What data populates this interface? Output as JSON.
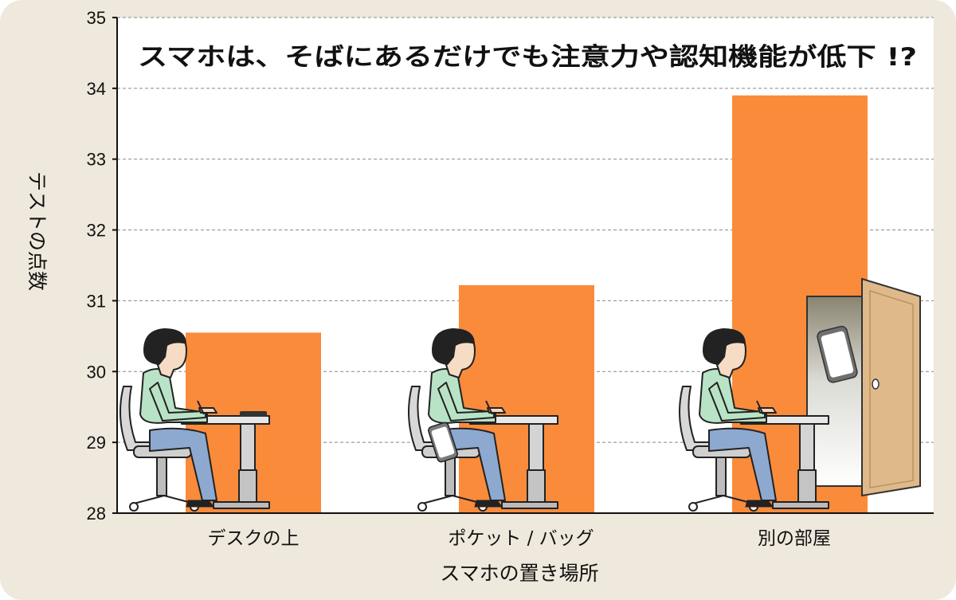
{
  "chart_data": {
    "type": "bar",
    "title": "スマホは、そばにあるだけでも注意力や認知機能が低下 !?",
    "xlabel": "スマホの置き場所",
    "ylabel": "テストの点数",
    "ylim": [
      28,
      35
    ],
    "yticks": [
      28,
      29,
      30,
      31,
      32,
      33,
      34,
      35
    ],
    "grid": true,
    "categories": [
      "デスクの上",
      "ポケット / バッグ",
      "別の部屋"
    ],
    "values": [
      30.55,
      31.22,
      33.9
    ],
    "colors": {
      "bar": "#f98b3b",
      "grid": "#888888",
      "background": "#efe8dc",
      "plot": "#ffffff"
    }
  },
  "illustrations": {
    "person_icon": "seated-person-at-desk-icon",
    "phone_icon": "smartphone-icon",
    "door_icon": "open-door-icon"
  }
}
